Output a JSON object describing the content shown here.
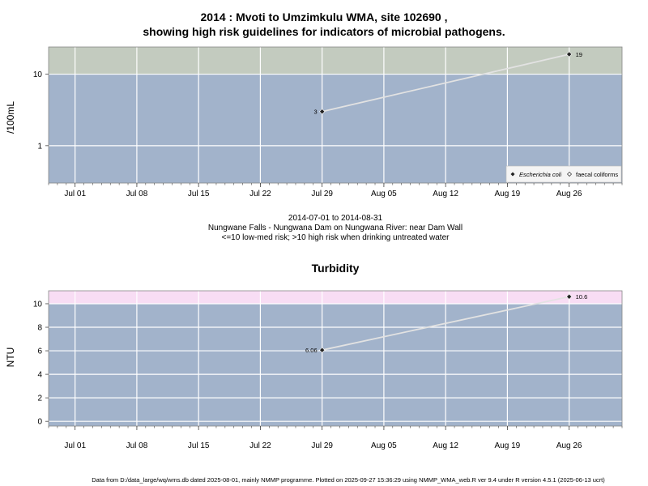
{
  "header": {
    "title_line1": "2014 : Mvoti to Umzimkulu WMA, site 102690 ,",
    "title_line2": "showing high risk guidelines for indicators of microbial pathogens."
  },
  "caption": {
    "date_range": "2014-07-01 to 2014-08-31",
    "site": "Nungwane Falls - Nungwana Dam on Nungwana River: near Dam Wall",
    "risk_note": "<=10 low-med risk; >10 high risk when drinking untreated water"
  },
  "footer": {
    "text": "Data from D:/data_large/wq/wms.db dated 2025-08-01, mainly NMMP programme. Plotted on 2025-09-27 15:36:29 using NMMP_WMA_web.R ver 9.4 under R version 4.5.1 (2025-06-13 ucrt)"
  },
  "colors": {
    "panel_bg": "#a2b3cb",
    "high_risk_microbial": "#c3cbbf",
    "high_risk_turbidity": "#f8ddf4",
    "grid": "#ffffff",
    "line": "#e2e2e2",
    "point": "#222222"
  },
  "chart_data": [
    {
      "type": "line",
      "title": "",
      "ylabel": "/100mL",
      "yscale": "log",
      "yticks": [
        1,
        10
      ],
      "ytick_labels": [
        "1",
        "10"
      ],
      "ylim": [
        0.3,
        24
      ],
      "xlim": [
        "2014-06-28",
        "2014-09-01"
      ],
      "x_ticks": [
        "2014-07-01",
        "2014-07-08",
        "2014-07-15",
        "2014-07-22",
        "2014-07-29",
        "2014-08-05",
        "2014-08-12",
        "2014-08-19",
        "2014-08-26"
      ],
      "x_tick_labels": [
        "Jul 01",
        "Jul 08",
        "Jul 15",
        "Jul 22",
        "Jul 29",
        "Aug 05",
        "Aug 12",
        "Aug 19",
        "Aug 26"
      ],
      "x_minor_ticks": "daily",
      "guideline": {
        "value": 10,
        "note": "above shaded as high risk"
      },
      "grid": true,
      "legend_position": "bottom-right",
      "series": [
        {
          "name": "Escherichia coli",
          "marker": "filled-diamond",
          "x": [
            "2014-07-29",
            "2014-08-26"
          ],
          "values": [
            3,
            19
          ],
          "labels": [
            "3",
            "19"
          ]
        },
        {
          "name": "faecal coliforms",
          "marker": "open-diamond",
          "x": [],
          "values": [],
          "labels": []
        }
      ]
    },
    {
      "type": "line",
      "title": "Turbidity",
      "ylabel": "NTU",
      "yscale": "linear",
      "yticks": [
        0,
        2,
        4,
        6,
        8,
        10
      ],
      "ytick_labels": [
        "0",
        "2",
        "4",
        "6",
        "8",
        "10"
      ],
      "ylim": [
        -0.4,
        11.1
      ],
      "xlim": [
        "2014-06-28",
        "2014-09-01"
      ],
      "x_ticks": [
        "2014-07-01",
        "2014-07-08",
        "2014-07-15",
        "2014-07-22",
        "2014-07-29",
        "2014-08-05",
        "2014-08-12",
        "2014-08-19",
        "2014-08-26"
      ],
      "x_tick_labels": [
        "Jul 01",
        "Jul 08",
        "Jul 15",
        "Jul 22",
        "Jul 29",
        "Aug 05",
        "Aug 12",
        "Aug 19",
        "Aug 26"
      ],
      "x_minor_ticks": "daily",
      "guideline": {
        "value": 10,
        "note": "above shaded as high risk"
      },
      "grid": true,
      "series": [
        {
          "name": "",
          "marker": "filled-diamond",
          "x": [
            "2014-07-29",
            "2014-08-26"
          ],
          "values": [
            6.06,
            10.6
          ],
          "labels": [
            "6.06",
            "10.6"
          ]
        }
      ]
    }
  ]
}
